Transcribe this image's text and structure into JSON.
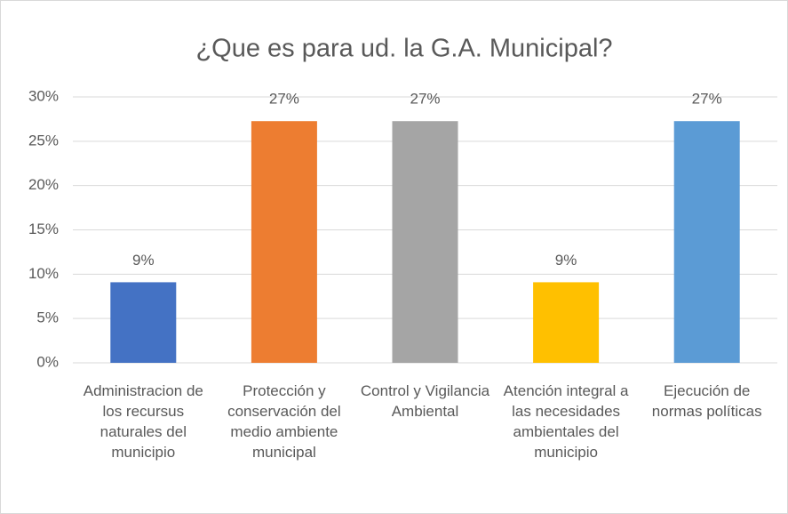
{
  "chart_data": {
    "type": "bar",
    "title": "¿Que es para ud. la G.A. Municipal?",
    "categories": [
      "Administracion de los recursus naturales del municipio",
      "Protección y conservación del medio ambiente municipal",
      "Control y Vigilancia Ambiental",
      "Atención integral a las necesidades ambientales del municipio",
      "Ejecución de normas políticas"
    ],
    "values": [
      9.09,
      27.27,
      27.27,
      9.09,
      27.27
    ],
    "value_labels": [
      "9%",
      "27%",
      "27%",
      "9%",
      "27%"
    ],
    "colors": [
      "#4472c4",
      "#ed7d31",
      "#a5a5a5",
      "#ffc000",
      "#5b9bd5"
    ],
    "ylim": [
      0,
      30
    ],
    "yticks": [
      {
        "value": 0,
        "label": "0%"
      },
      {
        "value": 5,
        "label": "5%"
      },
      {
        "value": 10,
        "label": "10%"
      },
      {
        "value": 15,
        "label": "15%"
      },
      {
        "value": 20,
        "label": "20%"
      },
      {
        "value": 25,
        "label": "25%"
      },
      {
        "value": 30,
        "label": "30%"
      }
    ],
    "grid": true
  }
}
